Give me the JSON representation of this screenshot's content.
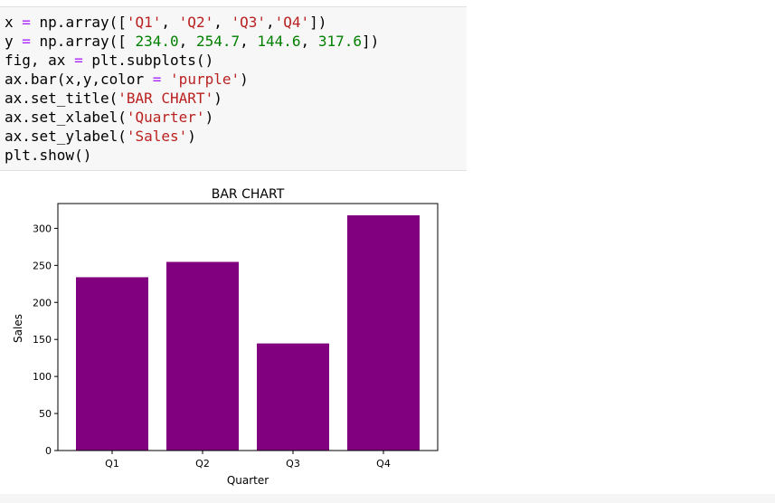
{
  "code_cell": {
    "lines": [
      [
        {
          "t": "x ",
          "k": "n"
        },
        {
          "t": "=",
          "k": "op"
        },
        {
          "t": " np.array([",
          "k": "n"
        },
        {
          "t": "'Q1'",
          "k": "str"
        },
        {
          "t": ", ",
          "k": "n"
        },
        {
          "t": "'Q2'",
          "k": "str"
        },
        {
          "t": ", ",
          "k": "n"
        },
        {
          "t": "'Q3'",
          "k": "str"
        },
        {
          "t": ",",
          "k": "n"
        },
        {
          "t": "'Q4'",
          "k": "str"
        },
        {
          "t": "])",
          "k": "n"
        }
      ],
      [
        {
          "t": "y ",
          "k": "n"
        },
        {
          "t": "=",
          "k": "op"
        },
        {
          "t": " np.array([ ",
          "k": "n"
        },
        {
          "t": "234.0",
          "k": "num"
        },
        {
          "t": ", ",
          "k": "n"
        },
        {
          "t": "254.7",
          "k": "num"
        },
        {
          "t": ", ",
          "k": "n"
        },
        {
          "t": "144.6",
          "k": "num"
        },
        {
          "t": ", ",
          "k": "n"
        },
        {
          "t": "317.6",
          "k": "num"
        },
        {
          "t": "])",
          "k": "n"
        }
      ],
      [
        {
          "t": "fig, ax ",
          "k": "n"
        },
        {
          "t": "=",
          "k": "op"
        },
        {
          "t": " plt.subplots()",
          "k": "n"
        }
      ],
      [
        {
          "t": "ax.bar(x,y,color ",
          "k": "n"
        },
        {
          "t": "=",
          "k": "op"
        },
        {
          "t": " ",
          "k": "n"
        },
        {
          "t": "'purple'",
          "k": "str"
        },
        {
          "t": ")",
          "k": "n"
        }
      ],
      [
        {
          "t": "ax.set_title(",
          "k": "n"
        },
        {
          "t": "'BAR CHART'",
          "k": "str"
        },
        {
          "t": ")",
          "k": "n"
        }
      ],
      [
        {
          "t": "ax.set_xlabel(",
          "k": "n"
        },
        {
          "t": "'Quarter'",
          "k": "str"
        },
        {
          "t": ")",
          "k": "n"
        }
      ],
      [
        {
          "t": "ax.set_ylabel(",
          "k": "n"
        },
        {
          "t": "'Sales'",
          "k": "str"
        },
        {
          "t": ")",
          "k": "n"
        }
      ],
      [
        {
          "t": "plt.show()",
          "k": "n"
        }
      ]
    ]
  },
  "chart_data": {
    "type": "bar",
    "title": "BAR CHART",
    "xlabel": "Quarter",
    "ylabel": "Sales",
    "categories": [
      "Q1",
      "Q2",
      "Q3",
      "Q4"
    ],
    "values": [
      234.0,
      254.7,
      144.6,
      317.6
    ],
    "ylim": [
      0,
      333.48
    ],
    "yticks": [
      0,
      50,
      100,
      150,
      200,
      250,
      300
    ],
    "bar_color": "#800080",
    "grid": false
  }
}
